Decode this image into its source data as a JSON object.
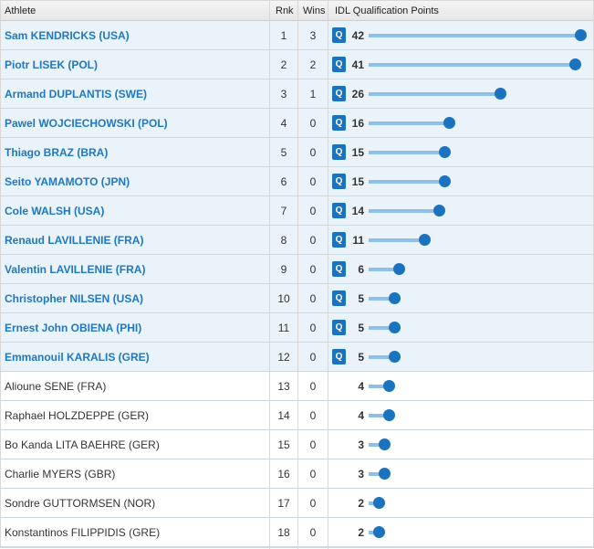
{
  "columns": {
    "athlete": "Athlete",
    "rank": "Rnk",
    "wins": "Wins",
    "points": "IDL Qualification Points"
  },
  "qualified_badge": "Q",
  "max_points": 42,
  "colors": {
    "accent": "#1b73bf",
    "bar": "#8fbfe6",
    "qualified_row": "#eaf2fa"
  },
  "athletes": [
    {
      "name": "Sam KENDRICKS (USA)",
      "rank": "1",
      "wins": "3",
      "points": 42,
      "qualified": true
    },
    {
      "name": "Piotr LISEK (POL)",
      "rank": "2",
      "wins": "2",
      "points": 41,
      "qualified": true
    },
    {
      "name": "Armand DUPLANTIS (SWE)",
      "rank": "3",
      "wins": "1",
      "points": 26,
      "qualified": true
    },
    {
      "name": "Pawel WOJCIECHOWSKI (POL)",
      "rank": "4",
      "wins": "0",
      "points": 16,
      "qualified": true
    },
    {
      "name": "Thiago BRAZ (BRA)",
      "rank": "5",
      "wins": "0",
      "points": 15,
      "qualified": true
    },
    {
      "name": "Seito YAMAMOTO (JPN)",
      "rank": "6",
      "wins": "0",
      "points": 15,
      "qualified": true
    },
    {
      "name": "Cole WALSH (USA)",
      "rank": "7",
      "wins": "0",
      "points": 14,
      "qualified": true
    },
    {
      "name": "Renaud LAVILLENIE (FRA)",
      "rank": "8",
      "wins": "0",
      "points": 11,
      "qualified": true
    },
    {
      "name": "Valentin LAVILLENIE (FRA)",
      "rank": "9",
      "wins": "0",
      "points": 6,
      "qualified": true
    },
    {
      "name": "Christopher NILSEN (USA)",
      "rank": "10",
      "wins": "0",
      "points": 5,
      "qualified": true
    },
    {
      "name": "Ernest John OBIENA (PHI)",
      "rank": "11",
      "wins": "0",
      "points": 5,
      "qualified": true
    },
    {
      "name": "Emmanouil KARALIS (GRE)",
      "rank": "12",
      "wins": "0",
      "points": 5,
      "qualified": true
    },
    {
      "name": "Alioune SENE (FRA)",
      "rank": "13",
      "wins": "0",
      "points": 4,
      "qualified": false
    },
    {
      "name": "Raphael HOLZDEPPE (GER)",
      "rank": "14",
      "wins": "0",
      "points": 4,
      "qualified": false
    },
    {
      "name": "Bo Kanda LITA BAEHRE (GER)",
      "rank": "15",
      "wins": "0",
      "points": 3,
      "qualified": false
    },
    {
      "name": "Charlie MYERS (GBR)",
      "rank": "16",
      "wins": "0",
      "points": 3,
      "qualified": false
    },
    {
      "name": "Sondre GUTTORMSEN (NOR)",
      "rank": "17",
      "wins": "0",
      "points": 2,
      "qualified": false
    },
    {
      "name": "Konstantinos FILIPPIDIS (GRE)",
      "rank": "18",
      "wins": "0",
      "points": 2,
      "qualified": false
    }
  ]
}
